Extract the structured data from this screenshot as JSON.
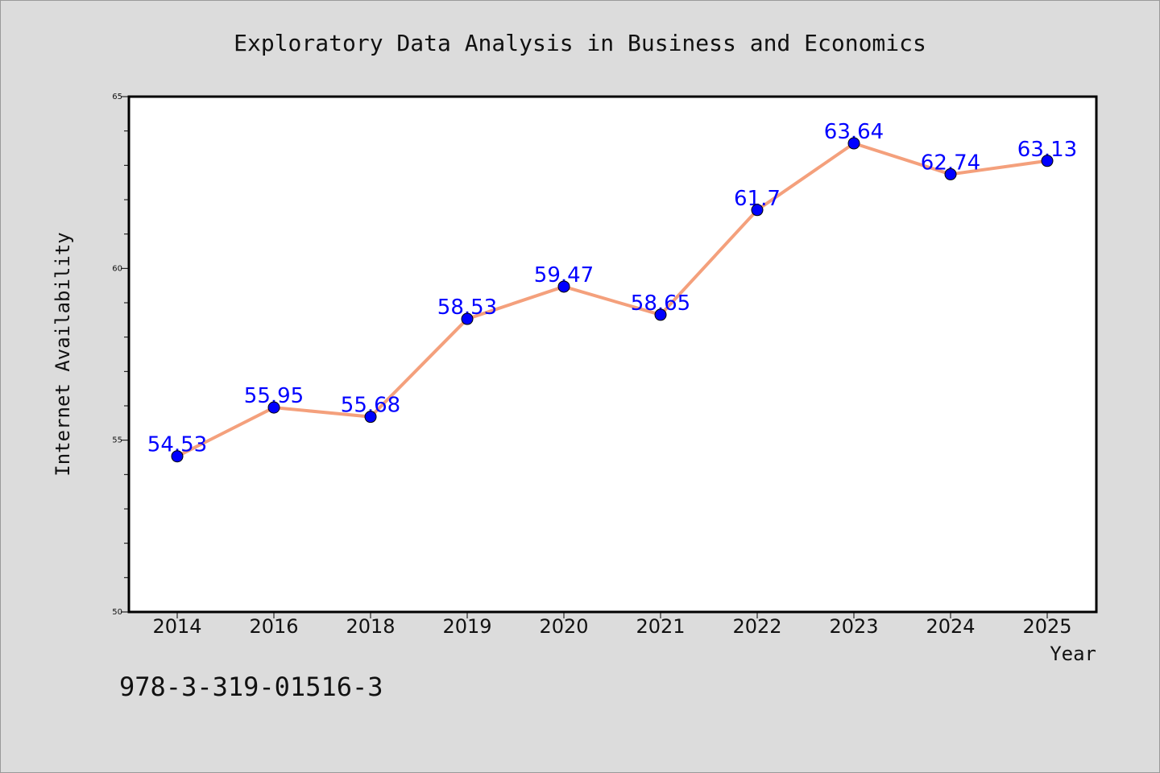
{
  "chart_data": {
    "type": "line",
    "title": "Exploratory Data Analysis in Business and Economics",
    "xlabel": "Year",
    "ylabel": "Internet Availability",
    "categories": [
      "2014",
      "2016",
      "2018",
      "2019",
      "2020",
      "2021",
      "2022",
      "2023",
      "2024",
      "2025"
    ],
    "series": [
      {
        "values": [
          54.53,
          55.95,
          55.68,
          58.53,
          59.47,
          58.65,
          61.7,
          63.64,
          62.74,
          63.13
        ],
        "labels": [
          "54.53",
          "55.95",
          "55.68",
          "58.53",
          "59.47",
          "58.65",
          "61.7",
          "63.64",
          "62.74",
          "63.13"
        ]
      }
    ],
    "ylim": [
      50,
      65
    ],
    "yticks": [
      "50",
      "55",
      "60",
      "65"
    ],
    "y_minor_step": 1,
    "grid": false,
    "line_color": "#f4a07c",
    "marker_color": "#0000ff",
    "label_color": "#0000ff",
    "plot_background": "#ffffff",
    "figure_background": "#dcdcdc"
  },
  "footer": {
    "isbn": "978-3-319-01516-3"
  }
}
